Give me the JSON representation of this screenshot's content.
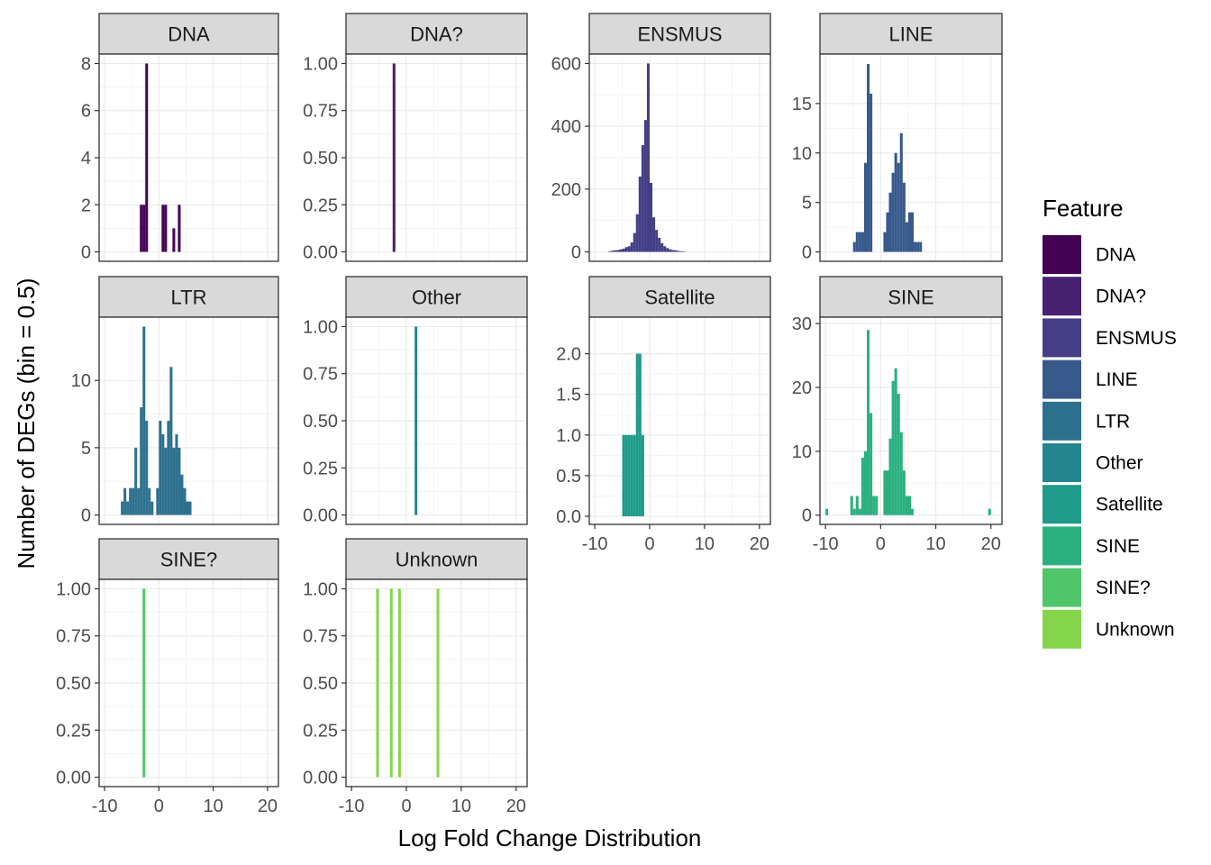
{
  "chart_data": {
    "type": "bar",
    "xlabel": "Log Fold Change Distribution",
    "ylabel": "Number of DEGs (bin = 0.5)",
    "legend": {
      "title": "Feature",
      "placement": "right",
      "entries": [
        {
          "name": "DNA",
          "color": "#440154"
        },
        {
          "name": "DNA?",
          "color": "#482173"
        },
        {
          "name": "ENSMUS",
          "color": "#433E85"
        },
        {
          "name": "LINE",
          "color": "#38598C"
        },
        {
          "name": "LTR",
          "color": "#2D708E"
        },
        {
          "name": "Other",
          "color": "#25858E"
        },
        {
          "name": "Satellite",
          "color": "#1E9B8A"
        },
        {
          "name": "SINE",
          "color": "#2BB07F"
        },
        {
          "name": "SINE?",
          "color": "#51C56A"
        },
        {
          "name": "Unknown",
          "color": "#85D54A"
        }
      ]
    },
    "x_ticks": [
      -10,
      0,
      10,
      20
    ],
    "x_tick_labels": [
      "-10",
      "0",
      "10",
      "20"
    ],
    "bin_width": 0.5,
    "panels": [
      {
        "name": "DNA",
        "color": "#440154",
        "xlim": [
          -11,
          22
        ],
        "ylim": [
          -0.4,
          8.4
        ],
        "y_ticks": [
          0,
          2,
          4,
          6,
          8
        ],
        "y_tick_labels": [
          "0",
          "2",
          "4",
          "6",
          "8"
        ],
        "bins": [
          [
            -3.25,
            2
          ],
          [
            -2.75,
            2
          ],
          [
            -2.25,
            8
          ],
          [
            0.75,
            2
          ],
          [
            1.25,
            2
          ],
          [
            2.75,
            1
          ],
          [
            3.75,
            2
          ]
        ]
      },
      {
        "name": "DNA?",
        "color": "#482173",
        "xlim": [
          -11,
          22
        ],
        "ylim": [
          -0.05,
          1.05
        ],
        "y_ticks": [
          0,
          0.25,
          0.5,
          0.75,
          1
        ],
        "y_tick_labels": [
          "0.00",
          "0.25",
          "0.50",
          "0.75",
          "1.00"
        ],
        "bins": [
          [
            -2.25,
            1
          ]
        ]
      },
      {
        "name": "ENSMUS",
        "color": "#433E85",
        "xlim": [
          -11,
          22
        ],
        "ylim": [
          -30,
          630
        ],
        "y_ticks": [
          0,
          200,
          400,
          600
        ],
        "y_tick_labels": [
          "0",
          "200",
          "400",
          "600"
        ],
        "bins": [
          [
            -7.25,
            2
          ],
          [
            -6.75,
            4
          ],
          [
            -6.25,
            5
          ],
          [
            -5.75,
            6
          ],
          [
            -5.25,
            8
          ],
          [
            -4.75,
            10
          ],
          [
            -4.25,
            15
          ],
          [
            -3.75,
            18
          ],
          [
            -3.25,
            30
          ],
          [
            -2.75,
            60
          ],
          [
            -2.25,
            120
          ],
          [
            -1.75,
            240
          ],
          [
            -1.25,
            340
          ],
          [
            -0.75,
            420
          ],
          [
            -0.25,
            600
          ],
          [
            0.25,
            220
          ],
          [
            0.75,
            110
          ],
          [
            1.25,
            70
          ],
          [
            1.75,
            45
          ],
          [
            2.25,
            28
          ],
          [
            2.75,
            18
          ],
          [
            3.25,
            12
          ],
          [
            3.75,
            8
          ],
          [
            4.25,
            6
          ],
          [
            4.75,
            5
          ],
          [
            5.25,
            3
          ],
          [
            5.75,
            2
          ],
          [
            6.25,
            1
          ]
        ]
      },
      {
        "name": "LINE",
        "color": "#38598C",
        "xlim": [
          -11,
          22
        ],
        "ylim": [
          -0.95,
          20
        ],
        "y_ticks": [
          0,
          5,
          10,
          15
        ],
        "y_tick_labels": [
          "0",
          "5",
          "10",
          "15"
        ],
        "bins": [
          [
            -4.75,
            1
          ],
          [
            -4.25,
            2
          ],
          [
            -3.75,
            2
          ],
          [
            -3.25,
            2
          ],
          [
            -2.75,
            9
          ],
          [
            -2.25,
            19
          ],
          [
            -1.75,
            16
          ],
          [
            0.75,
            2
          ],
          [
            1.25,
            4
          ],
          [
            1.75,
            6
          ],
          [
            2.25,
            8
          ],
          [
            2.75,
            10
          ],
          [
            3.25,
            9
          ],
          [
            3.75,
            12
          ],
          [
            4.25,
            7
          ],
          [
            4.75,
            3
          ],
          [
            5.25,
            4
          ],
          [
            5.75,
            4
          ],
          [
            6.25,
            1
          ],
          [
            6.75,
            1
          ],
          [
            7.25,
            1
          ]
        ]
      },
      {
        "name": "LTR",
        "color": "#2D708E",
        "xlim": [
          -11,
          22
        ],
        "ylim": [
          -0.7,
          14.7
        ],
        "y_ticks": [
          0,
          5,
          10
        ],
        "y_tick_labels": [
          "0",
          "5",
          "10"
        ],
        "bins": [
          [
            -6.75,
            1
          ],
          [
            -6.25,
            2
          ],
          [
            -5.75,
            1
          ],
          [
            -5.25,
            2
          ],
          [
            -4.75,
            2
          ],
          [
            -4.25,
            5
          ],
          [
            -3.75,
            2
          ],
          [
            -3.25,
            8
          ],
          [
            -2.75,
            14
          ],
          [
            -2.25,
            7
          ],
          [
            -1.75,
            2
          ],
          [
            -1.25,
            1
          ],
          [
            -0.25,
            2
          ],
          [
            0.25,
            7
          ],
          [
            0.75,
            6
          ],
          [
            1.25,
            5
          ],
          [
            1.75,
            7
          ],
          [
            2.25,
            11
          ],
          [
            2.75,
            5
          ],
          [
            3.25,
            6
          ],
          [
            3.75,
            5
          ],
          [
            4.25,
            3
          ],
          [
            4.75,
            2
          ],
          [
            5.25,
            1
          ],
          [
            5.75,
            1
          ]
        ]
      },
      {
        "name": "Other",
        "color": "#25858E",
        "xlim": [
          -11,
          22
        ],
        "ylim": [
          -0.05,
          1.05
        ],
        "y_ticks": [
          0,
          0.25,
          0.5,
          0.75,
          1
        ],
        "y_tick_labels": [
          "0.00",
          "0.25",
          "0.50",
          "0.75",
          "1.00"
        ],
        "bins": [
          [
            1.75,
            1
          ]
        ]
      },
      {
        "name": "Satellite",
        "color": "#1E9B8A",
        "xlim": [
          -11,
          22
        ],
        "ylim": [
          -0.1,
          2.45
        ],
        "y_ticks": [
          0,
          0.5,
          1,
          1.5,
          2
        ],
        "y_tick_labels": [
          "0.0",
          "0.5",
          "1.0",
          "1.5",
          "2.0"
        ],
        "bins": [
          [
            -4.75,
            1
          ],
          [
            -4.25,
            1
          ],
          [
            -3.75,
            1
          ],
          [
            -3.25,
            1
          ],
          [
            -2.75,
            1
          ],
          [
            -2.25,
            2
          ],
          [
            -1.75,
            2
          ],
          [
            -1.25,
            1
          ]
        ]
      },
      {
        "name": "SINE",
        "color": "#2BB07F",
        "xlim": [
          -11,
          22
        ],
        "ylim": [
          -1.45,
          31
        ],
        "y_ticks": [
          0,
          10,
          20,
          30
        ],
        "y_tick_labels": [
          "0",
          "10",
          "20",
          "30"
        ],
        "bins": [
          [
            -9.75,
            1
          ],
          [
            -5.25,
            3
          ],
          [
            -4.75,
            1
          ],
          [
            -4.25,
            3
          ],
          [
            -3.75,
            1
          ],
          [
            -3.25,
            9
          ],
          [
            -2.75,
            10
          ],
          [
            -2.25,
            29
          ],
          [
            -1.75,
            16
          ],
          [
            -1.25,
            3
          ],
          [
            -0.75,
            3
          ],
          [
            0.75,
            7
          ],
          [
            1.25,
            7
          ],
          [
            1.75,
            12
          ],
          [
            2.25,
            21
          ],
          [
            2.75,
            23
          ],
          [
            3.25,
            19
          ],
          [
            3.75,
            13
          ],
          [
            4.25,
            7
          ],
          [
            4.75,
            3
          ],
          [
            5.25,
            3
          ],
          [
            5.75,
            1
          ],
          [
            19.75,
            1
          ]
        ]
      },
      {
        "name": "SINE?",
        "color": "#51C56A",
        "xlim": [
          -11,
          22
        ],
        "ylim": [
          -0.05,
          1.05
        ],
        "y_ticks": [
          0,
          0.25,
          0.5,
          0.75,
          1
        ],
        "y_tick_labels": [
          "0.00",
          "0.25",
          "0.50",
          "0.75",
          "1.00"
        ],
        "bins": [
          [
            -2.75,
            1
          ]
        ]
      },
      {
        "name": "Unknown",
        "color": "#85D54A",
        "xlim": [
          -11,
          22
        ],
        "ylim": [
          -0.05,
          1.05
        ],
        "y_ticks": [
          0,
          0.25,
          0.5,
          0.75,
          1
        ],
        "y_tick_labels": [
          "0.00",
          "0.25",
          "0.50",
          "0.75",
          "1.00"
        ],
        "bins": [
          [
            -5.25,
            1
          ],
          [
            -2.75,
            1
          ],
          [
            -1.25,
            1
          ],
          [
            5.75,
            1
          ]
        ]
      }
    ]
  }
}
